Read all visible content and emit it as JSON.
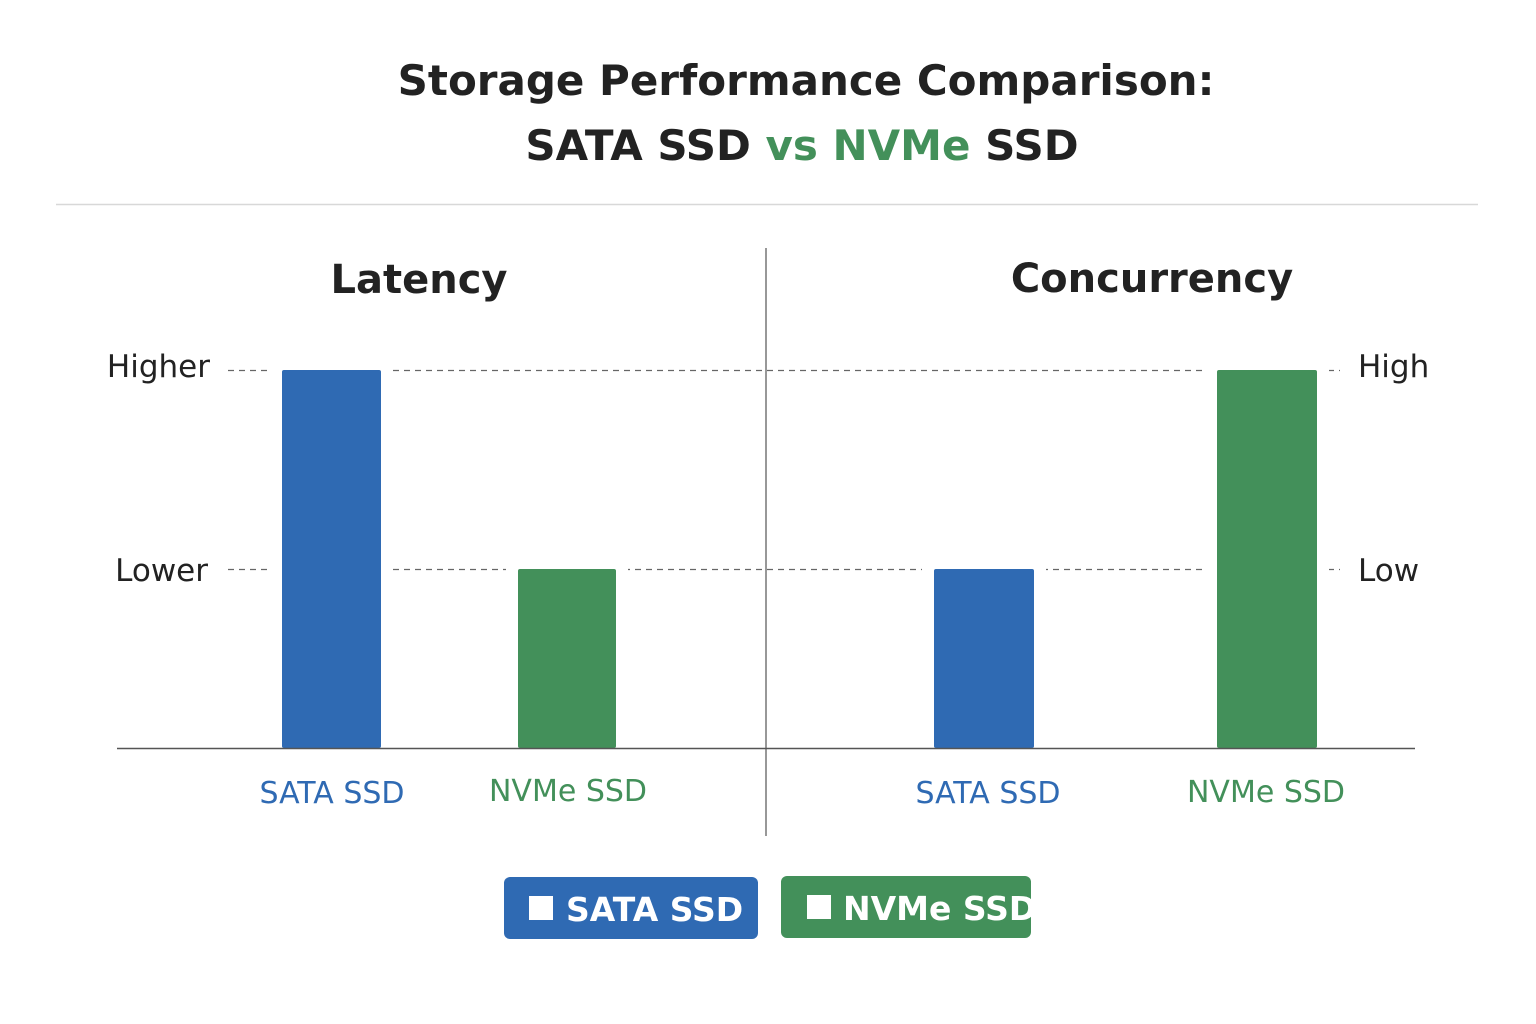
{
  "title": {
    "line1": "Storage Performance Comparison:",
    "part_a": "SATA SSD",
    "part_vs": "vs",
    "part_b": "NVMe",
    "part_c": "SSD"
  },
  "colors": {
    "sata": "#2f6ab3",
    "nvme": "#43905a",
    "text": "#222222",
    "axis": "#555555"
  },
  "chart_data": [
    {
      "type": "bar",
      "title": "Latency",
      "categories": [
        "SATA SSD",
        "NVMe SSD"
      ],
      "y_ticks": [
        "Lower",
        "Higher"
      ],
      "values": [
        "Higher",
        "Lower"
      ],
      "tick_side": "left",
      "grid": "dashed at tick levels"
    },
    {
      "type": "bar",
      "title": "Concurrency",
      "categories": [
        "SATA SSD",
        "NVMe SSD"
      ],
      "y_ticks": [
        "Low",
        "High"
      ],
      "values": [
        "Low",
        "High"
      ],
      "tick_side": "right",
      "grid": "dashed at tick levels"
    }
  ],
  "legend": {
    "placement": "bottom",
    "items": [
      {
        "label": "SATA SSD",
        "color": "#2f6ab3"
      },
      {
        "label": "NVMe SSD",
        "color": "#43905a"
      }
    ]
  }
}
